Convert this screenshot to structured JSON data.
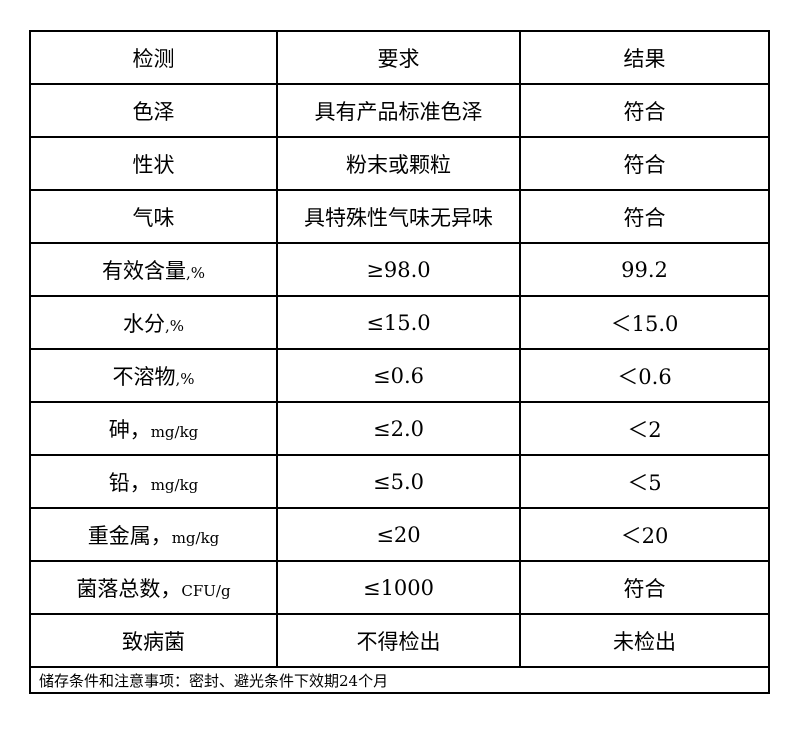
{
  "header": [
    "检测",
    "要求",
    "结果"
  ],
  "rows": [
    {
      "item": "色泽",
      "unit": "",
      "requirement": "具有产品标准色泽",
      "result": "符合"
    },
    {
      "item": "性状",
      "unit": "",
      "requirement": "粉末或颗粒",
      "result": "符合"
    },
    {
      "item": "气味",
      "unit": "",
      "requirement": "具特殊性气味无异味",
      "result": "符合"
    },
    {
      "item": "有效含量",
      "unit": ",%",
      "requirement": "≥98.0",
      "result": "99.2"
    },
    {
      "item": "水分",
      "unit": ",%",
      "requirement": "≤15.0",
      "result": "＜15.0"
    },
    {
      "item": "不溶物",
      "unit": ",%",
      "requirement": "≤0.6",
      "result": "＜0.6"
    },
    {
      "item": "砷，",
      "unit": "mg/kg",
      "requirement": "≤2.0",
      "result": "＜2"
    },
    {
      "item": "铅，",
      "unit": "mg/kg",
      "requirement": "≤5.0",
      "result": "＜5"
    },
    {
      "item": "重金属，",
      "unit": "mg/kg",
      "requirement": "≤20",
      "result": "＜20"
    },
    {
      "item": "菌落总数，",
      "unit": "CFU/g",
      "requirement": "≤1000",
      "result": "符合"
    },
    {
      "item": "致病菌",
      "unit": "",
      "requirement": "不得检出",
      "result": "未检出"
    }
  ],
  "footer": "储存条件和注意事项：密封、避光条件下效期24个月"
}
